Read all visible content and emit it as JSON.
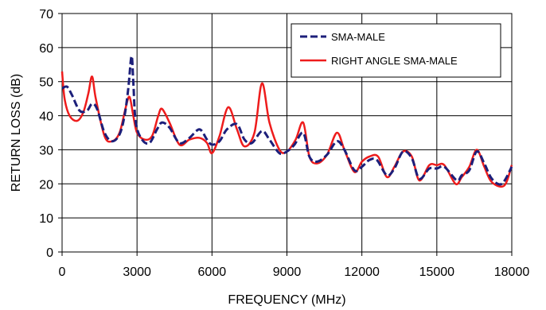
{
  "chart_data": {
    "type": "line",
    "xlabel": "FREQUENCY (MHz)",
    "ylabel": "RETURN LOSS (dB)",
    "xlim": [
      0,
      18000
    ],
    "ylim": [
      0,
      70
    ],
    "x_ticks": [
      0,
      3000,
      6000,
      9000,
      12000,
      15000,
      18000
    ],
    "y_ticks": [
      0,
      10,
      20,
      30,
      40,
      50,
      60,
      70
    ],
    "x_tick_labels": [
      "0",
      "3000",
      "6000",
      "9000",
      "12000",
      "15000",
      "18000"
    ],
    "y_tick_labels": [
      "0",
      "10",
      "20",
      "30",
      "40",
      "50",
      "60",
      "70"
    ],
    "grid": "vertical-and-horizontal",
    "legend_position": "top-right",
    "series": [
      {
        "name": "SMA-MALE",
        "color": "#1c1f7a",
        "style": "dashed",
        "x": [
          0,
          200,
          400,
          700,
          1000,
          1200,
          1400,
          1700,
          2000,
          2300,
          2500,
          2650,
          2780,
          2850,
          2950,
          3200,
          3500,
          3800,
          4000,
          4300,
          4700,
          5100,
          5500,
          5800,
          6000,
          6300,
          6600,
          7000,
          7300,
          7600,
          8000,
          8300,
          8700,
          9000,
          9300,
          9650,
          9900,
          10200,
          10600,
          11000,
          11300,
          11700,
          12000,
          12300,
          12600,
          13000,
          13300,
          13650,
          14000,
          14300,
          14700,
          15000,
          15300,
          15800,
          16000,
          16300,
          16600,
          16900,
          17200,
          17600,
          18000
        ],
        "values": [
          48,
          48.5,
          46,
          41.5,
          41.5,
          43.5,
          42,
          35,
          32.5,
          34.5,
          40,
          48,
          57.5,
          50,
          38,
          33,
          32,
          36,
          38,
          36.5,
          32,
          33.5,
          36,
          33,
          31.5,
          32.5,
          36,
          37.5,
          33,
          32,
          35.5,
          33,
          29,
          29.5,
          31.5,
          35,
          28,
          26.5,
          28.5,
          32.5,
          30,
          24,
          25,
          27,
          27,
          22.5,
          24.5,
          29.5,
          27.5,
          21.5,
          24.5,
          24.5,
          25,
          21,
          22.5,
          24,
          29.5,
          26,
          21.5,
          20,
          25
        ]
      },
      {
        "name": "RIGHT ANGLE SMA-MALE",
        "color": "#ee1c1c",
        "style": "solid",
        "x": [
          0,
          100,
          300,
          600,
          850,
          1050,
          1200,
          1350,
          1700,
          2000,
          2300,
          2550,
          2700,
          2850,
          3000,
          3300,
          3600,
          3850,
          4000,
          4300,
          4700,
          5100,
          5500,
          5800,
          6000,
          6300,
          6650,
          7000,
          7300,
          7700,
          8000,
          8300,
          8700,
          9000,
          9350,
          9650,
          9900,
          10200,
          10600,
          11000,
          11300,
          11700,
          12000,
          12300,
          12650,
          13000,
          13300,
          13650,
          14000,
          14300,
          14700,
          15000,
          15300,
          15750,
          16000,
          16300,
          16600,
          16900,
          17200,
          17700,
          18000
        ],
        "values": [
          53,
          45,
          40,
          38.5,
          41,
          46.5,
          51.5,
          45,
          34,
          32.5,
          35,
          42.5,
          45.5,
          40,
          35,
          33,
          34,
          40,
          42,
          38,
          31.5,
          33,
          33.5,
          32,
          29,
          34,
          42.5,
          36,
          31,
          35,
          49.5,
          38,
          30,
          29.5,
          33,
          38,
          28,
          26,
          28.5,
          35,
          30,
          23.5,
          26.5,
          28,
          28,
          22,
          25,
          29.5,
          28,
          21,
          25.5,
          25.5,
          25.5,
          20,
          22,
          25,
          30,
          25,
          20.5,
          19.5,
          25.5
        ]
      }
    ]
  }
}
